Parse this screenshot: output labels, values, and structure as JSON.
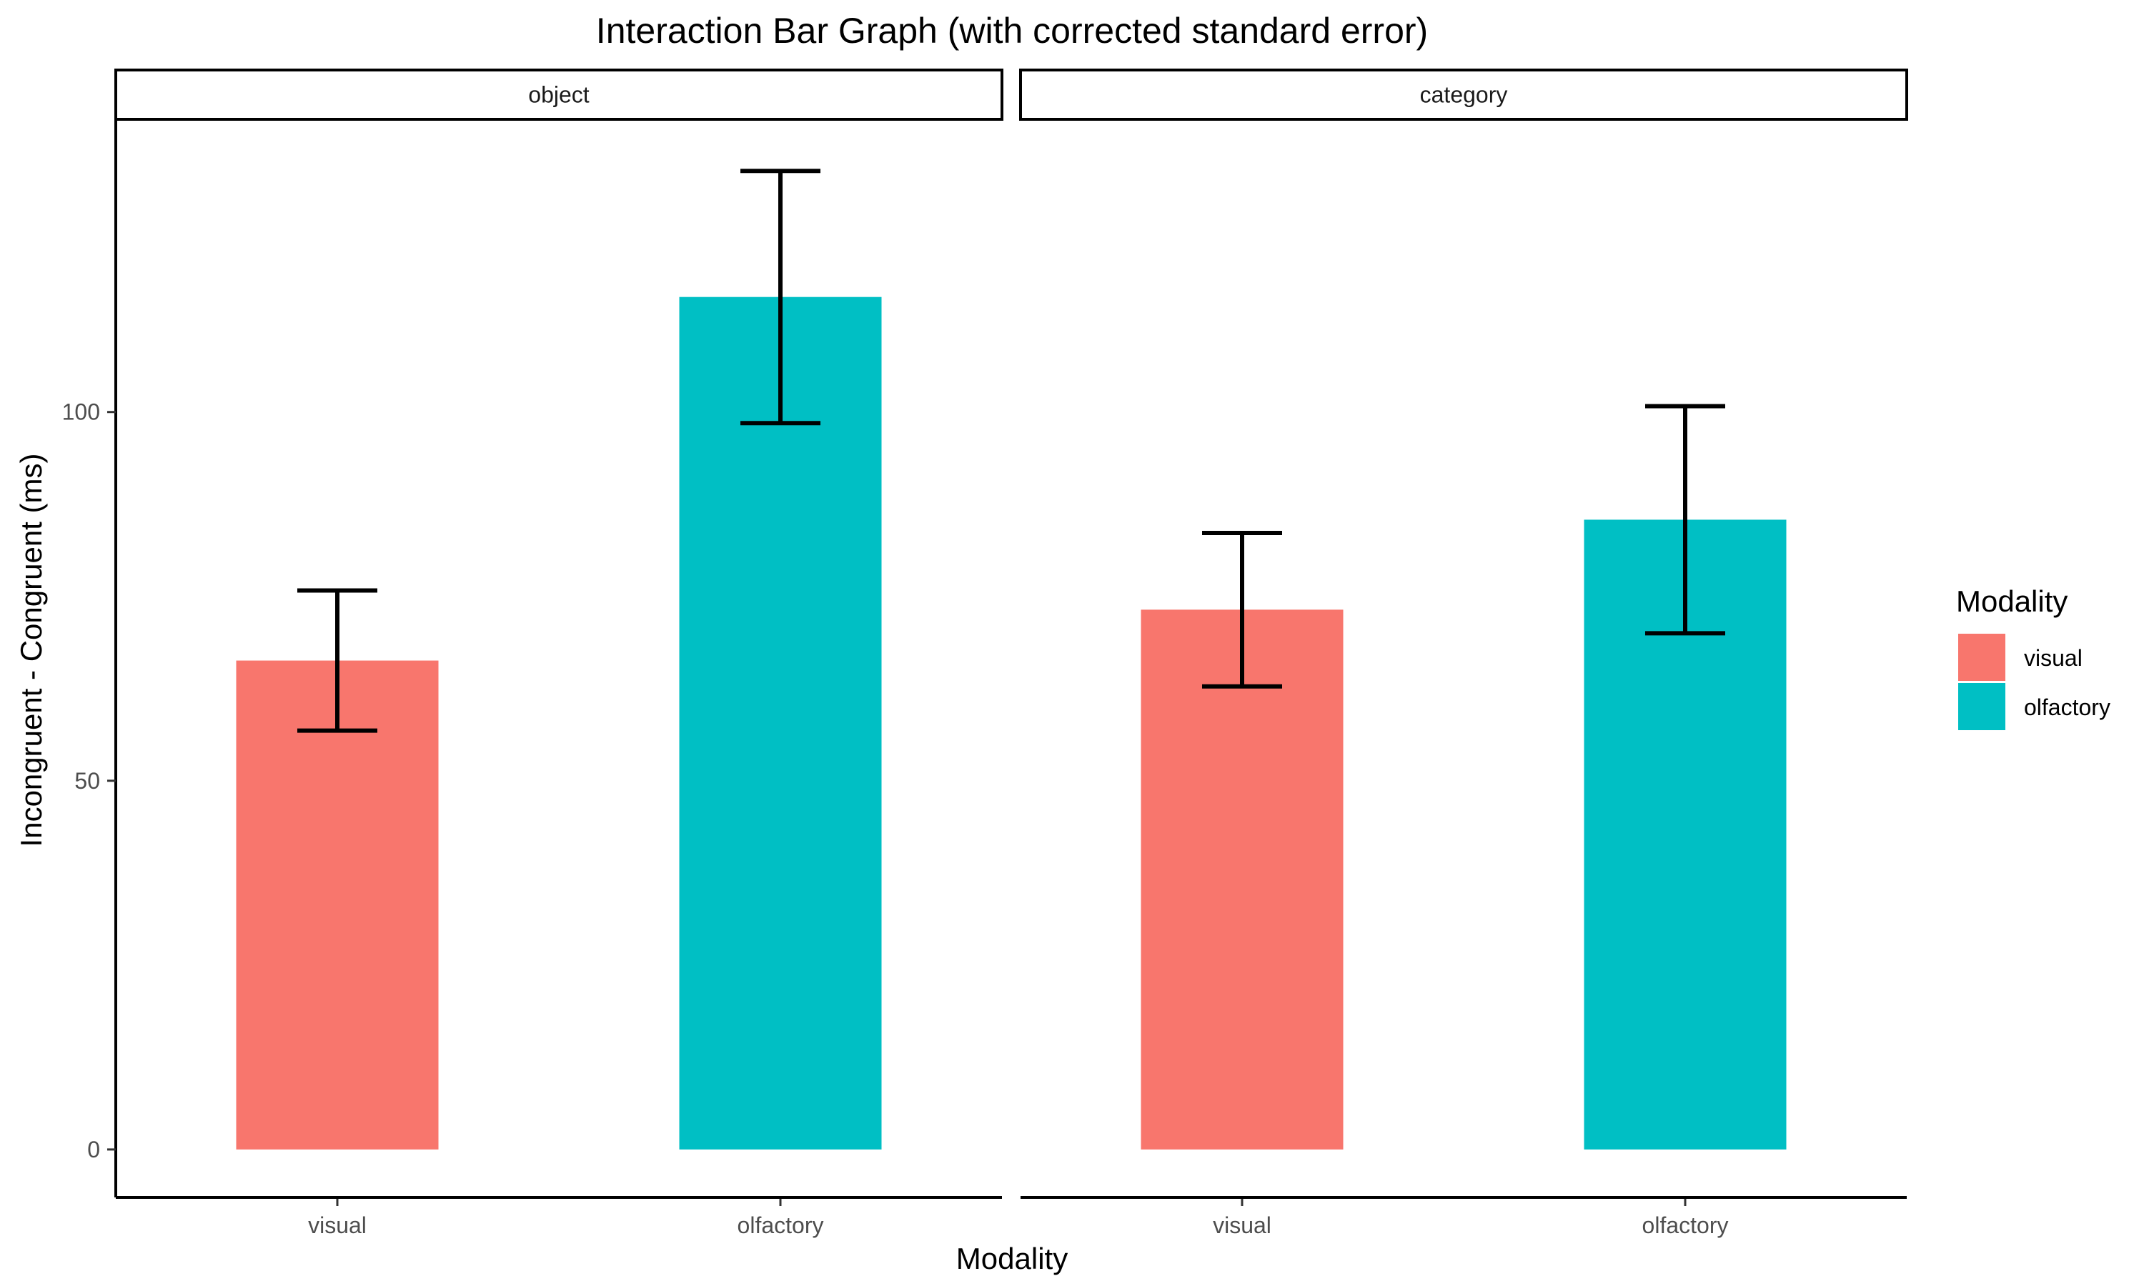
{
  "chart_data": {
    "type": "bar",
    "title": "Interaction Bar Graph (with corrected standard error)",
    "xlabel": "Modality",
    "ylabel": "Incongruent - Congruent (ms)",
    "ylim": [
      -6.5,
      139.5
    ],
    "yticks": [
      0,
      50,
      100
    ],
    "grid": false,
    "legend": {
      "title": "Modality",
      "position": "right",
      "entries": [
        {
          "label": "visual",
          "color": "#F8766D"
        },
        {
          "label": "olfactory",
          "color": "#00BFC4"
        }
      ]
    },
    "facets": [
      {
        "label": "object",
        "categories": [
          "visual",
          "olfactory"
        ],
        "values": [
          66.3,
          115.6
        ],
        "error_low": [
          56.8,
          98.5
        ],
        "error_high": [
          75.8,
          132.7
        ]
      },
      {
        "label": "category",
        "categories": [
          "visual",
          "olfactory"
        ],
        "values": [
          73.2,
          85.4
        ],
        "error_low": [
          62.8,
          70.0
        ],
        "error_high": [
          83.6,
          100.8
        ]
      }
    ]
  }
}
